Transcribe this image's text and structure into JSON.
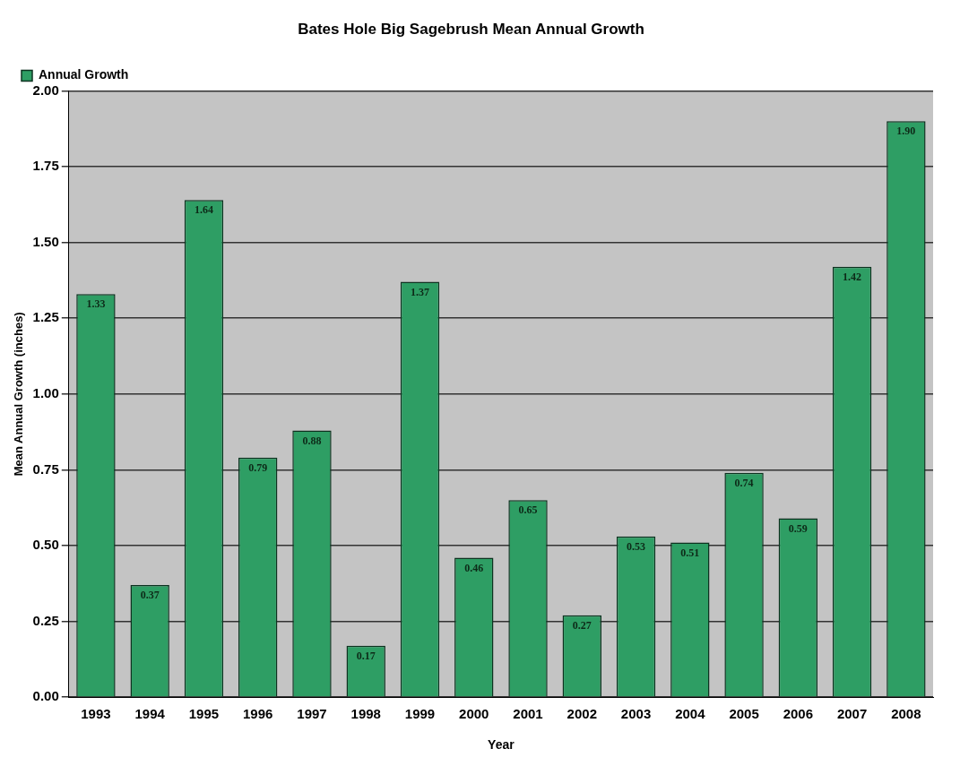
{
  "chart_data": {
    "type": "bar",
    "title": "Bates Hole Big Sagebrush Mean Annual Growth",
    "xlabel": "Year",
    "ylabel": "Mean Annual Growth (inches)",
    "categories": [
      "1993",
      "1994",
      "1995",
      "1996",
      "1997",
      "1998",
      "1999",
      "2000",
      "2001",
      "2002",
      "2003",
      "2004",
      "2005",
      "2006",
      "2007",
      "2008"
    ],
    "series": [
      {
        "name": "Annual Growth",
        "color": "#2e9e64",
        "values": [
          1.33,
          0.37,
          1.64,
          0.79,
          0.88,
          0.17,
          1.37,
          0.46,
          0.65,
          0.27,
          0.53,
          0.51,
          0.74,
          0.59,
          1.42,
          1.9
        ],
        "value_labels": [
          "1.33",
          "0.37",
          "1.64",
          "0.79",
          "0.88",
          "0.17",
          "1.37",
          "0.46",
          "0.65",
          "0.27",
          "0.53",
          "0.51",
          "0.74",
          "0.59",
          "1.42",
          "1.90"
        ]
      }
    ],
    "ylim": [
      0,
      2
    ],
    "yticks": [
      {
        "value": 0,
        "label": "0.00"
      },
      {
        "value": 0.25,
        "label": "0.25"
      },
      {
        "value": 0.5,
        "label": "0.50"
      },
      {
        "value": 0.75,
        "label": "0.75"
      },
      {
        "value": 1,
        "label": "1.00"
      },
      {
        "value": 1.25,
        "label": "1.25"
      },
      {
        "value": 1.5,
        "label": "1.50"
      },
      {
        "value": 1.75,
        "label": "1.75"
      },
      {
        "value": 2,
        "label": "2.00"
      }
    ],
    "grid": "y",
    "legend": "top left"
  }
}
